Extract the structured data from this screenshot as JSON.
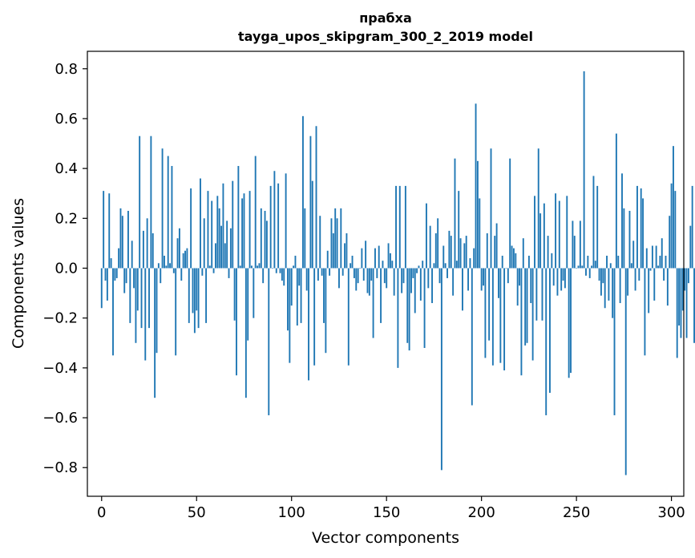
{
  "chart_data": {
    "type": "bar",
    "title": "прабха",
    "subtitle": "tayga_upos_skipgram_300_2_2019 model",
    "xlabel": "Vector components",
    "ylabel": "Components values",
    "xlim": [
      -7.5,
      306.5
    ],
    "ylim": [
      -0.915,
      0.87
    ],
    "xticks": [
      0,
      50,
      100,
      150,
      200,
      250,
      300
    ],
    "yticks": [
      -0.8,
      -0.6,
      -0.4,
      -0.2,
      0.0,
      0.2,
      0.4,
      0.6,
      0.8
    ],
    "ytick_labels": [
      "−0.8",
      "−0.6",
      "−0.4",
      "−0.2",
      "0.0",
      "0.2",
      "0.4",
      "0.6",
      "0.8"
    ],
    "xtick_labels": [
      "0",
      "50",
      "100",
      "150",
      "200",
      "250",
      "300"
    ],
    "bar_color": "#1f77b4",
    "grid": false,
    "legend": "none",
    "values": [
      -0.16,
      0.31,
      -0.05,
      -0.13,
      0.3,
      0.04,
      -0.35,
      -0.05,
      -0.04,
      0.08,
      0.24,
      0.21,
      -0.1,
      -0.06,
      0.23,
      -0.22,
      0.11,
      -0.08,
      -0.3,
      -0.17,
      0.53,
      -0.24,
      0.15,
      -0.37,
      0.2,
      -0.24,
      0.53,
      0.14,
      -0.52,
      -0.34,
      0.02,
      -0.06,
      0.48,
      0.05,
      0.01,
      0.45,
      0.02,
      0.41,
      -0.02,
      -0.35,
      0.12,
      0.16,
      -0.05,
      0.06,
      0.07,
      0.08,
      -0.22,
      0.32,
      -0.18,
      -0.26,
      -0.17,
      -0.24,
      0.36,
      -0.03,
      0.2,
      -0.22,
      0.31,
      0.01,
      0.27,
      -0.02,
      0.1,
      0.29,
      0.24,
      0.17,
      0.34,
      0.1,
      0.19,
      -0.04,
      0.16,
      0.35,
      -0.21,
      -0.43,
      0.41,
      0.01,
      0.28,
      0.3,
      -0.52,
      -0.29,
      0.31,
      0.01,
      -0.2,
      0.45,
      0.01,
      0.02,
      0.24,
      -0.06,
      0.23,
      0.19,
      -0.59,
      0.33,
      0.0,
      0.39,
      -0.02,
      0.34,
      -0.02,
      -0.05,
      -0.07,
      0.38,
      -0.25,
      -0.38,
      -0.15,
      0.01,
      0.05,
      -0.23,
      -0.07,
      -0.22,
      0.61,
      0.24,
      -0.09,
      -0.45,
      0.53,
      0.35,
      -0.39,
      0.57,
      -0.05,
      0.21,
      -0.03,
      -0.22,
      -0.34,
      0.07,
      -0.03,
      0.2,
      0.14,
      0.24,
      0.2,
      -0.08,
      0.24,
      -0.03,
      0.1,
      0.14,
      -0.39,
      0.02,
      0.05,
      -0.04,
      -0.09,
      -0.06,
      0.0,
      0.08,
      -0.05,
      0.11,
      -0.1,
      -0.11,
      -0.05,
      -0.28,
      0.08,
      -0.04,
      0.09,
      -0.22,
      0.03,
      -0.06,
      -0.08,
      0.1,
      0.06,
      0.03,
      -0.11,
      0.33,
      -0.4,
      0.33,
      -0.1,
      -0.06,
      0.33,
      -0.3,
      -0.33,
      -0.1,
      -0.04,
      -0.18,
      -0.02,
      0.01,
      -0.13,
      0.03,
      -0.32,
      0.26,
      -0.08,
      0.17,
      -0.14,
      0.02,
      0.14,
      0.2,
      -0.06,
      -0.81,
      0.09,
      0.02,
      -0.04,
      0.15,
      0.13,
      -0.11,
      0.44,
      0.03,
      0.31,
      0.12,
      -0.17,
      0.1,
      0.13,
      -0.09,
      0.04,
      -0.55,
      0.08,
      0.66,
      0.43,
      0.28,
      -0.09,
      -0.07,
      -0.36,
      0.14,
      -0.29,
      0.48,
      -0.39,
      0.13,
      0.18,
      -0.12,
      -0.38,
      0.05,
      -0.41,
      0.0,
      -0.06,
      0.44,
      0.09,
      0.08,
      0.06,
      -0.15,
      -0.07,
      -0.43,
      0.12,
      -0.31,
      -0.3,
      0.05,
      -0.14,
      -0.37,
      0.29,
      -0.21,
      0.48,
      0.22,
      -0.21,
      0.26,
      -0.59,
      0.13,
      -0.5,
      0.06,
      -0.07,
      0.3,
      -0.11,
      0.27,
      -0.09,
      -0.05,
      -0.08,
      0.29,
      -0.44,
      -0.42,
      0.19,
      0.13,
      0.0,
      0.01,
      0.19,
      0.01,
      0.79,
      -0.03,
      0.05,
      -0.04,
      0.01,
      0.37,
      0.03,
      0.33,
      -0.05,
      -0.11,
      -0.06,
      -0.16,
      0.05,
      -0.13,
      0.02,
      -0.2,
      -0.59,
      0.54,
      0.05,
      -0.14,
      0.38,
      0.24,
      -0.83,
      -0.11,
      0.23,
      0.02,
      0.11,
      -0.09,
      0.33,
      -0.05,
      0.32,
      0.28,
      -0.35,
      0.08,
      -0.18,
      -0.01,
      0.09,
      -0.13,
      0.09,
      0.01,
      0.05,
      0.12,
      -0.05,
      0.05,
      -0.15,
      0.21,
      0.34,
      0.49,
      0.31,
      -0.36,
      -0.23,
      -0.28,
      -0.17,
      -0.09,
      -0.28,
      -0.06,
      0.17,
      0.33,
      -0.3,
      0.07,
      -0.35
    ]
  }
}
